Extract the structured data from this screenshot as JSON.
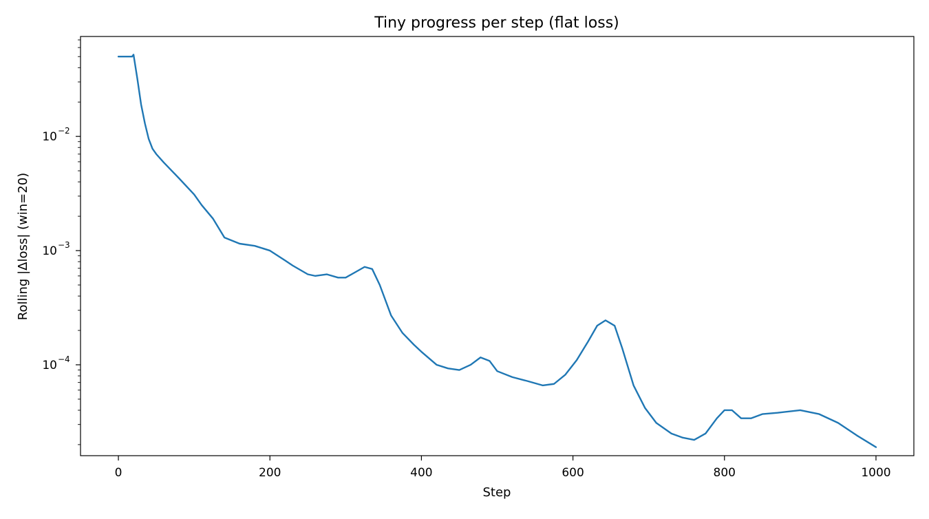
{
  "chart_data": {
    "type": "line",
    "title": "Tiny progress per step (flat loss)",
    "xlabel": "Step",
    "ylabel": "Rolling |Δloss| (win=20)",
    "yscale": "log",
    "xlim": [
      -50,
      1050
    ],
    "ylim": [
      1.6e-05,
      0.075
    ],
    "grid": false,
    "legend": "none",
    "x_ticks": [
      {
        "value": 0,
        "label": "0"
      },
      {
        "value": 200,
        "label": "200"
      },
      {
        "value": 400,
        "label": "400"
      },
      {
        "value": 600,
        "label": "600"
      },
      {
        "value": 800,
        "label": "800"
      },
      {
        "value": 1000,
        "label": "1000"
      }
    ],
    "y_ticks": [
      {
        "value": 0.01,
        "base": "10",
        "exp": "−2"
      },
      {
        "value": 0.001,
        "base": "10",
        "exp": "−3"
      },
      {
        "value": 0.0001,
        "base": "10",
        "exp": "−4"
      }
    ],
    "series": [
      {
        "color": "#1f77b4",
        "points": [
          [
            0,
            0.05
          ],
          [
            18,
            0.05
          ],
          [
            20,
            0.052
          ],
          [
            25,
            0.032
          ],
          [
            30,
            0.019
          ],
          [
            35,
            0.013
          ],
          [
            40,
            0.0095
          ],
          [
            45,
            0.0078
          ],
          [
            50,
            0.007
          ],
          [
            60,
            0.0059
          ],
          [
            80,
            0.0043
          ],
          [
            100,
            0.0031
          ],
          [
            110,
            0.0025
          ],
          [
            125,
            0.0019
          ],
          [
            140,
            0.0013
          ],
          [
            160,
            0.00115
          ],
          [
            180,
            0.0011
          ],
          [
            200,
            0.001
          ],
          [
            220,
            0.00082
          ],
          [
            230,
            0.00074
          ],
          [
            250,
            0.00062
          ],
          [
            260,
            0.0006
          ],
          [
            275,
            0.00062
          ],
          [
            290,
            0.00058
          ],
          [
            300,
            0.00058
          ],
          [
            315,
            0.00066
          ],
          [
            325,
            0.00072
          ],
          [
            335,
            0.00069
          ],
          [
            345,
            0.0005
          ],
          [
            360,
            0.00027
          ],
          [
            375,
            0.00019
          ],
          [
            390,
            0.00015
          ],
          [
            400,
            0.00013
          ],
          [
            420,
            0.0001
          ],
          [
            435,
            9.3e-05
          ],
          [
            450,
            9e-05
          ],
          [
            465,
            0.0001
          ],
          [
            478,
            0.000116
          ],
          [
            490,
            0.000108
          ],
          [
            500,
            8.8e-05
          ],
          [
            520,
            7.8e-05
          ],
          [
            540,
            7.2e-05
          ],
          [
            560,
            6.6e-05
          ],
          [
            575,
            6.8e-05
          ],
          [
            590,
            8.2e-05
          ],
          [
            605,
            0.00011
          ],
          [
            620,
            0.00016
          ],
          [
            632,
            0.00022
          ],
          [
            643,
            0.000245
          ],
          [
            655,
            0.00022
          ],
          [
            665,
            0.00014
          ],
          [
            680,
            6.6e-05
          ],
          [
            695,
            4.2e-05
          ],
          [
            710,
            3.1e-05
          ],
          [
            730,
            2.5e-05
          ],
          [
            745,
            2.3e-05
          ],
          [
            760,
            2.2e-05
          ],
          [
            775,
            2.5e-05
          ],
          [
            790,
            3.4e-05
          ],
          [
            800,
            4e-05
          ],
          [
            810,
            4e-05
          ],
          [
            822,
            3.4e-05
          ],
          [
            835,
            3.4e-05
          ],
          [
            850,
            3.7e-05
          ],
          [
            870,
            3.8e-05
          ],
          [
            900,
            4e-05
          ],
          [
            925,
            3.7e-05
          ],
          [
            950,
            3.1e-05
          ],
          [
            975,
            2.4e-05
          ],
          [
            1000,
            1.9e-05
          ]
        ]
      }
    ]
  }
}
